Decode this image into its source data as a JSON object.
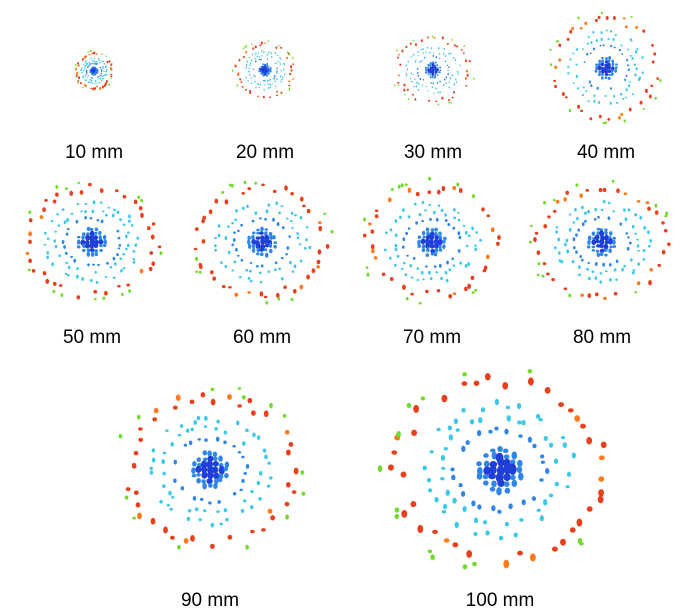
{
  "figure": {
    "panels": [
      {
        "label": "10 mm",
        "distance_mm": 10
      },
      {
        "label": "20 mm",
        "distance_mm": 20
      },
      {
        "label": "30 mm",
        "distance_mm": 30
      },
      {
        "label": "40 mm",
        "distance_mm": 40
      },
      {
        "label": "50 mm",
        "distance_mm": 50
      },
      {
        "label": "60 mm",
        "distance_mm": 60
      },
      {
        "label": "70 mm",
        "distance_mm": 70
      },
      {
        "label": "80 mm",
        "distance_mm": 80
      },
      {
        "label": "90 mm",
        "distance_mm": 90
      },
      {
        "label": "100 mm",
        "distance_mm": 100
      }
    ],
    "colors": {
      "core": "#1f3fd6",
      "inner": "#2f86e6",
      "middle": "#3cc8e8",
      "outer": "#e8401c",
      "outer_alt": "#ff7a1a",
      "fringe": "#6fdc2a"
    }
  }
}
